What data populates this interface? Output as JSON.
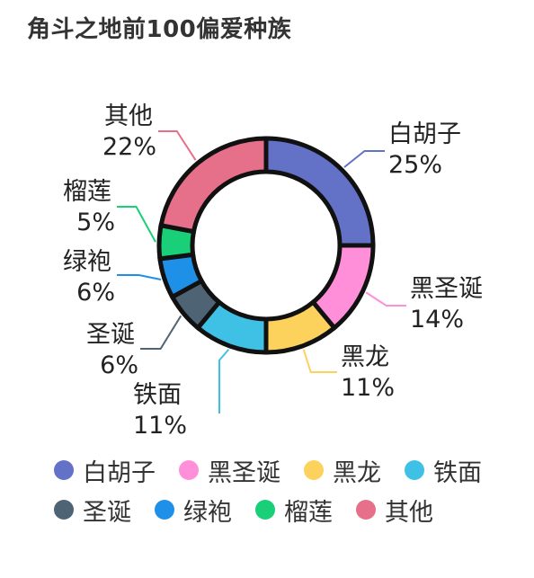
{
  "title": "角斗之地前100偏爱种族",
  "chart_data": {
    "type": "pie",
    "style": "donut",
    "title": "角斗之地前100偏爱种族",
    "legend_position": "bottom",
    "slices": [
      {
        "label": "白胡子",
        "value": 25,
        "percent_label": "25%",
        "color": "#6371c7"
      },
      {
        "label": "黑圣诞",
        "value": 14,
        "percent_label": "14%",
        "color": "#ff8fd8"
      },
      {
        "label": "黑龙",
        "value": 11,
        "percent_label": "11%",
        "color": "#fcd25c"
      },
      {
        "label": "铁面",
        "value": 11,
        "percent_label": "11%",
        "color": "#3fc1e6"
      },
      {
        "label": "圣诞",
        "value": 6,
        "percent_label": "6%",
        "color": "#4e6474"
      },
      {
        "label": "绿袍",
        "value": 6,
        "percent_label": "6%",
        "color": "#1e90e8"
      },
      {
        "label": "榴莲",
        "value": 5,
        "percent_label": "5%",
        "color": "#19cf77"
      },
      {
        "label": "其他",
        "value": 22,
        "percent_label": "22%",
        "color": "#e6708a"
      }
    ]
  }
}
